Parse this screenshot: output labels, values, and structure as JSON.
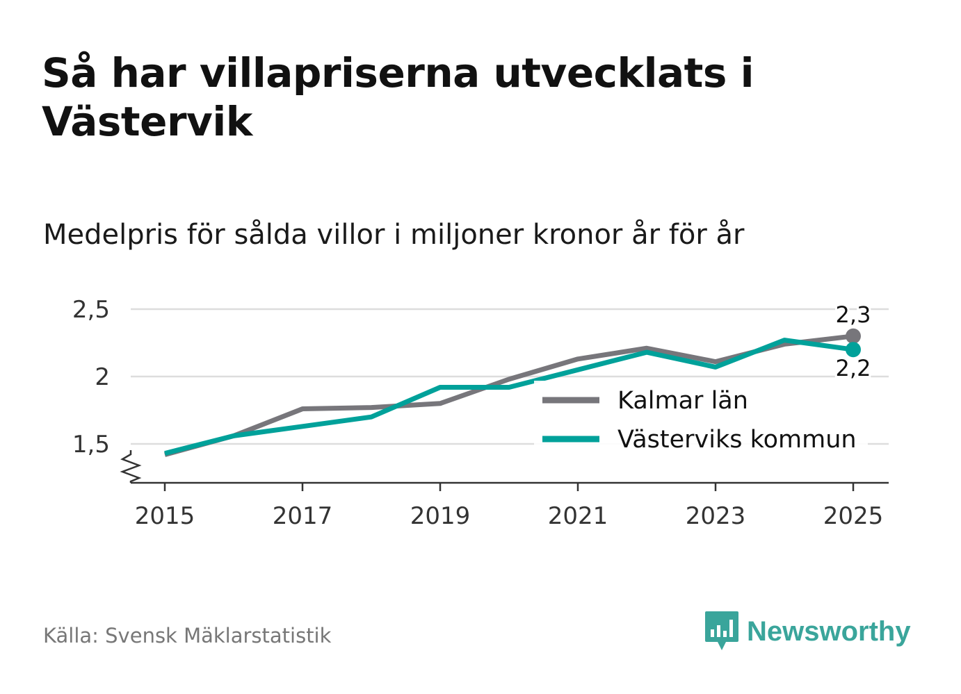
{
  "title": "Så har villapriserna utvecklats i Västervik",
  "subtitle": "Medelpris för sålda villor i miljoner kronor år för år",
  "source": "Källa: Svensk Mäklarstatistik",
  "brand": "Newsworthy",
  "colors": {
    "kalmar": "#77767b",
    "vastervik": "#00a19a",
    "grid": "#dddddd",
    "axis": "#333333",
    "brand": "#3aa59b"
  },
  "chart_data": {
    "type": "line",
    "title": "Så har villapriserna utvecklats i Västervik",
    "xlabel": "",
    "ylabel": "",
    "ylim": [
      1.2,
      2.5
    ],
    "xlim": [
      2014.5,
      2025.5
    ],
    "x": [
      2015,
      2016,
      2017,
      2018,
      2019,
      2020,
      2021,
      2022,
      2023,
      2024,
      2025
    ],
    "xticks": [
      "2015",
      "2017",
      "2019",
      "2021",
      "2023",
      "2025"
    ],
    "xtick_values": [
      2015,
      2017,
      2019,
      2021,
      2023,
      2025
    ],
    "yticks": [
      "1,5",
      "2",
      "2,5"
    ],
    "ytick_values": [
      1.5,
      2,
      2.5
    ],
    "series": [
      {
        "name": "Kalmar län",
        "values": [
          1.42,
          1.56,
          1.76,
          1.77,
          1.8,
          1.98,
          2.13,
          2.21,
          2.11,
          2.24,
          2.3
        ],
        "end_label": "2,3"
      },
      {
        "name": "Västerviks kommun",
        "values": [
          1.43,
          1.56,
          1.63,
          1.7,
          1.92,
          1.92,
          2.05,
          2.18,
          2.07,
          2.27,
          2.2
        ],
        "end_label": "2,2"
      }
    ],
    "legend": [
      "Kalmar län",
      "Västerviks kommun"
    ],
    "legend_position": "lower-right",
    "grid": true,
    "axis_break": true
  }
}
